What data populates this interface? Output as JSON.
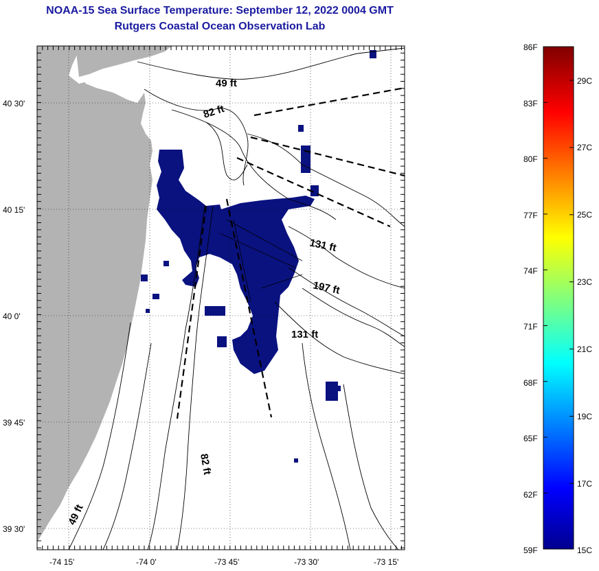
{
  "header": {
    "title_line1": "NOAA-15 Sea Surface Temperature:  September 12, 2022 0004 GMT",
    "title_line2": "Rutgers Coastal Ocean Observation Lab"
  },
  "map": {
    "latitude_labels": [
      "40 30'",
      "40 15'",
      "40 0'",
      "39 45'",
      "39 30'"
    ],
    "longitude_labels": [
      "-74 15'",
      "-74 0'",
      "-73 45'",
      "-73 30'",
      "-73 15'"
    ],
    "depth_labels": [
      "49 ft",
      "82 ft",
      "131 ft",
      "197 ft",
      "131 ft",
      "82 ft",
      "49 ft"
    ],
    "colors": {
      "land": "#b3b3b3",
      "sst_cold": "#0a1280",
      "contour": "#000000"
    }
  },
  "colorbar": {
    "fahrenheit_labels": [
      "86F",
      "83F",
      "80F",
      "77F",
      "74F",
      "71F",
      "68F",
      "65F",
      "62F",
      "59F"
    ],
    "celsius_labels": [
      "29C",
      "27C",
      "25C",
      "23C",
      "21C",
      "19C",
      "17C",
      "15C"
    ],
    "colors": [
      "#00008f",
      "#0000ff",
      "#00ffff",
      "#ffff00",
      "#ff0000",
      "#800000"
    ]
  }
}
